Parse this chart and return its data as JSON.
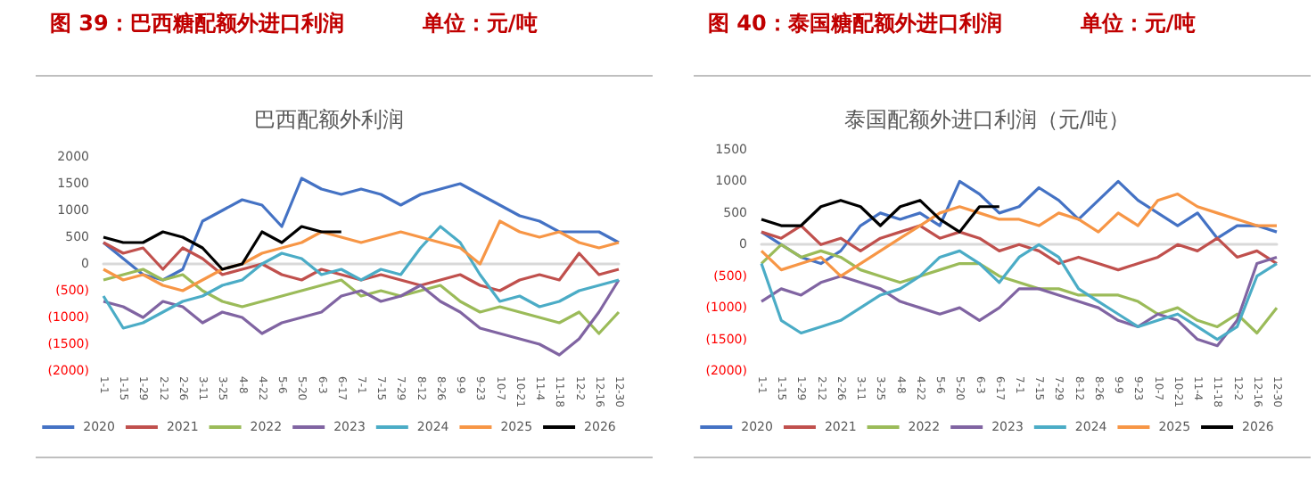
{
  "chart_data": [
    {
      "type": "line",
      "title": "图 39：巴西糖配额外进口利润",
      "subtitle": "单位：元/吨",
      "annotations": [
        "巴西配额外利润"
      ],
      "marker": "none",
      "legend": "bottom",
      "categories": [
        "1-1",
        "1-15",
        "1-29",
        "2-12",
        "2-26",
        "3-11",
        "3-25",
        "4-8",
        "4-22",
        "5-6",
        "5-20",
        "6-3",
        "6-17",
        "7-1",
        "7-15",
        "7-29",
        "8-12",
        "8-26",
        "9-9",
        "9-23",
        "10-7",
        "10-21",
        "11-4",
        "11-18",
        "12-2",
        "12-16",
        "12-30"
      ],
      "ylim": [
        -2000,
        2000
      ],
      "yticks": [
        {
          "value": -2000,
          "label": "(2000)"
        },
        {
          "value": -1500,
          "label": "(1500)"
        },
        {
          "value": -1000,
          "label": "(1000)"
        },
        {
          "value": -500,
          "label": "(500)"
        },
        0,
        500,
        1000,
        1500,
        2000
      ],
      "series": [
        {
          "name": "2020",
          "color": "#4472c4",
          "values": [
            400,
            100,
            -200,
            -300,
            -100,
            800,
            1000,
            1200,
            1100,
            700,
            1600,
            1400,
            1300,
            1400,
            1300,
            1100,
            1300,
            1400,
            1500,
            1300,
            1100,
            900,
            800,
            600,
            600,
            600,
            400
          ]
        },
        {
          "name": "2021",
          "color": "#c0504d",
          "values": [
            400,
            200,
            300,
            -100,
            300,
            100,
            -200,
            -100,
            0,
            -200,
            -300,
            -100,
            -200,
            -300,
            -200,
            -300,
            -400,
            -300,
            -200,
            -400,
            -500,
            -300,
            -200,
            -300,
            200,
            -200,
            -100
          ]
        },
        {
          "name": "2022",
          "color": "#9bbb59",
          "values": [
            -300,
            -200,
            -100,
            -300,
            -200,
            -500,
            -700,
            -800,
            -700,
            -600,
            -500,
            -400,
            -300,
            -600,
            -500,
            -600,
            -500,
            -400,
            -700,
            -900,
            -800,
            -900,
            -1000,
            -1100,
            -900,
            -1300,
            -900
          ]
        },
        {
          "name": "2023",
          "color": "#8064a2",
          "values": [
            -700,
            -800,
            -1000,
            -700,
            -800,
            -1100,
            -900,
            -1000,
            -1300,
            -1100,
            -1000,
            -900,
            -600,
            -500,
            -700,
            -600,
            -400,
            -700,
            -900,
            -1200,
            -1300,
            -1400,
            -1500,
            -1700,
            -1400,
            -900,
            -300
          ]
        },
        {
          "name": "2024",
          "color": "#4bacc6",
          "values": [
            -600,
            -1200,
            -1100,
            -900,
            -700,
            -600,
            -400,
            -300,
            0,
            200,
            100,
            -200,
            -100,
            -300,
            -100,
            -200,
            300,
            700,
            400,
            -200,
            -700,
            -600,
            -800,
            -700,
            -500,
            -400,
            -300
          ]
        },
        {
          "name": "2025",
          "color": "#f79646",
          "values": [
            -100,
            -300,
            -200,
            -400,
            -500,
            -300,
            -100,
            0,
            200,
            300,
            400,
            600,
            500,
            400,
            500,
            600,
            500,
            400,
            300,
            0,
            800,
            600,
            500,
            600,
            400,
            300,
            400
          ]
        },
        {
          "name": "2026",
          "color": "#000000",
          "values": [
            500,
            400,
            400,
            600,
            500,
            300,
            -100,
            0,
            600,
            400,
            700,
            600,
            600,
            null,
            null,
            null,
            null,
            null,
            null,
            null,
            null,
            null,
            null,
            null,
            null,
            null,
            null
          ]
        }
      ]
    },
    {
      "type": "line",
      "title": "图 40：泰国糖配额外进口利润",
      "subtitle": "单位：元/吨",
      "annotations": [
        "泰国配额外进口利润（元/吨）"
      ],
      "marker": "none",
      "legend": "bottom",
      "categories": [
        "1-1",
        "1-15",
        "1-29",
        "2-12",
        "2-26",
        "3-11",
        "3-25",
        "4-8",
        "4-22",
        "5-6",
        "5-20",
        "6-3",
        "6-17",
        "7-1",
        "7-15",
        "7-29",
        "8-12",
        "8-26",
        "9-9",
        "9-23",
        "10-7",
        "10-21",
        "11-4",
        "11-18",
        "12-2",
        "12-16",
        "12-30"
      ],
      "ylim": [
        -2000,
        1500
      ],
      "yticks": [
        {
          "value": -2000,
          "label": "(2000)"
        },
        {
          "value": -1500,
          "label": "(1500)"
        },
        {
          "value": -1000,
          "label": "(1000)"
        },
        {
          "value": -500,
          "label": "(500)"
        },
        0,
        500,
        1000,
        1500
      ],
      "series": [
        {
          "name": "2020",
          "color": "#4472c4",
          "values": [
            200,
            0,
            -200,
            -300,
            -100,
            300,
            500,
            400,
            500,
            300,
            1000,
            800,
            500,
            600,
            900,
            700,
            400,
            700,
            1000,
            700,
            500,
            300,
            500,
            100,
            300,
            300,
            200
          ]
        },
        {
          "name": "2021",
          "color": "#c0504d",
          "values": [
            200,
            100,
            300,
            0,
            100,
            -100,
            100,
            200,
            300,
            100,
            200,
            100,
            -100,
            0,
            -100,
            -300,
            -200,
            -300,
            -400,
            -300,
            -200,
            0,
            -100,
            100,
            -200,
            -100,
            -300
          ]
        },
        {
          "name": "2022",
          "color": "#9bbb59",
          "values": [
            -300,
            0,
            -200,
            -100,
            -200,
            -400,
            -500,
            -600,
            -500,
            -400,
            -300,
            -300,
            -500,
            -600,
            -700,
            -700,
            -800,
            -800,
            -800,
            -900,
            -1100,
            -1000,
            -1200,
            -1300,
            -1100,
            -1400,
            -1000
          ]
        },
        {
          "name": "2023",
          "color": "#8064a2",
          "values": [
            -900,
            -700,
            -800,
            -600,
            -500,
            -600,
            -700,
            -900,
            -1000,
            -1100,
            -1000,
            -1200,
            -1000,
            -700,
            -700,
            -800,
            -900,
            -1000,
            -1200,
            -1300,
            -1100,
            -1200,
            -1500,
            -1600,
            -1200,
            -300,
            -200
          ]
        },
        {
          "name": "2024",
          "color": "#4bacc6",
          "values": [
            -300,
            -1200,
            -1400,
            -1300,
            -1200,
            -1000,
            -800,
            -700,
            -500,
            -200,
            -100,
            -300,
            -600,
            -200,
            0,
            -200,
            -700,
            -900,
            -1100,
            -1300,
            -1200,
            -1100,
            -1300,
            -1500,
            -1300,
            -500,
            -300
          ]
        },
        {
          "name": "2025",
          "color": "#f79646",
          "values": [
            -100,
            -400,
            -300,
            -200,
            -500,
            -300,
            -100,
            100,
            300,
            500,
            600,
            500,
            400,
            400,
            300,
            500,
            400,
            200,
            500,
            300,
            700,
            800,
            600,
            500,
            400,
            300,
            300
          ]
        },
        {
          "name": "2026",
          "color": "#000000",
          "values": [
            400,
            300,
            300,
            600,
            700,
            600,
            300,
            600,
            700,
            400,
            200,
            600,
            600,
            null,
            null,
            null,
            null,
            null,
            null,
            null,
            null,
            null,
            null,
            null,
            null,
            null,
            null
          ]
        }
      ]
    }
  ]
}
